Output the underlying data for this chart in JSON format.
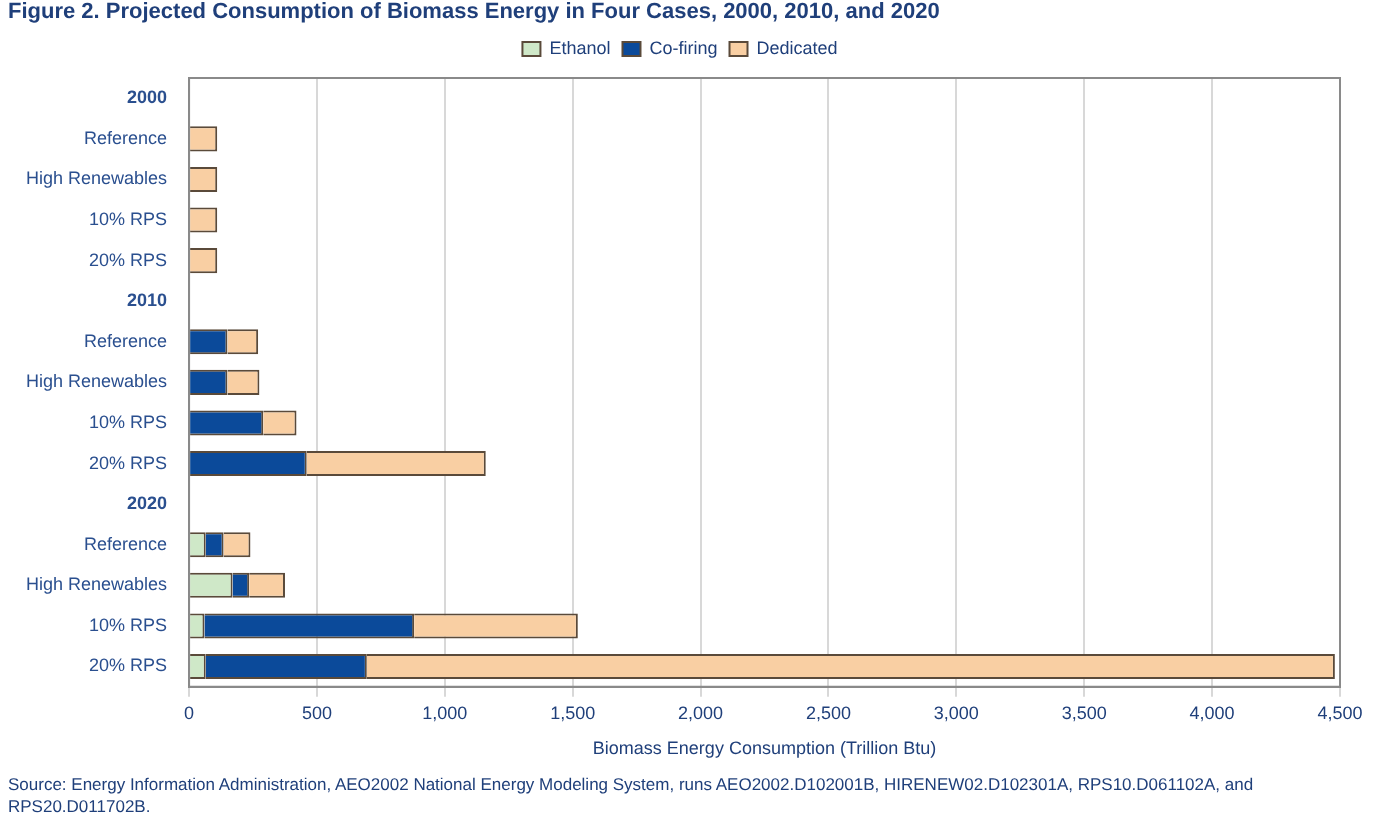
{
  "chart_data": {
    "type": "bar",
    "orientation": "horizontal",
    "stacked": true,
    "title": "Figure 2.  Projected Consumption of Biomass Energy in Four Cases, 2000, 2010, and 2020",
    "xlabel": "Biomass Energy Consumption (Trillion Btu)",
    "categories": [
      "2000",
      "Reference",
      "High Renewables",
      "10% RPS",
      "20% RPS",
      "2010",
      "Reference",
      "High Renewables",
      "10% RPS",
      "20% RPS",
      "2020",
      "Reference",
      "High Renewables",
      "10% RPS",
      "20% RPS"
    ],
    "series": [
      {
        "name": "Ethanol",
        "color": "#cfe8c8",
        "values": [
          null,
          0,
          0,
          0,
          0,
          null,
          0,
          0,
          0,
          0,
          null,
          65,
          170,
          60,
          65
        ]
      },
      {
        "name": "Co-firing",
        "color": "#0b4a9a",
        "values": [
          null,
          0,
          0,
          0,
          0,
          null,
          150,
          150,
          290,
          460,
          null,
          70,
          65,
          820,
          630
        ]
      },
      {
        "name": "Dedicated",
        "color": "#f9cfa3",
        "values": [
          null,
          110,
          110,
          110,
          110,
          null,
          120,
          125,
          130,
          700,
          null,
          105,
          140,
          640,
          3785
        ]
      }
    ],
    "xlim": [
      0,
      4500
    ],
    "xticks": [
      {
        "value": 0,
        "label": "0"
      },
      {
        "value": 500,
        "label": "500"
      },
      {
        "value": 1000,
        "label": "1,000"
      },
      {
        "value": 1500,
        "label": "1,500"
      },
      {
        "value": 2000,
        "label": "2,000"
      },
      {
        "value": 2500,
        "label": "2,500"
      },
      {
        "value": 3000,
        "label": "3,000"
      },
      {
        "value": 3500,
        "label": "3,500"
      },
      {
        "value": 4000,
        "label": "4,000"
      },
      {
        "value": 4500,
        "label": "4,500"
      }
    ],
    "grid": "x",
    "legend": "top",
    "annotations": [
      "Source:  Energy Information Administration, AEO2002 National Energy Modeling System, runs AEO2002.D102001B, HIRENEW02.D102301A, RPS10.D061102A, and RPS20.D011702B."
    ]
  }
}
